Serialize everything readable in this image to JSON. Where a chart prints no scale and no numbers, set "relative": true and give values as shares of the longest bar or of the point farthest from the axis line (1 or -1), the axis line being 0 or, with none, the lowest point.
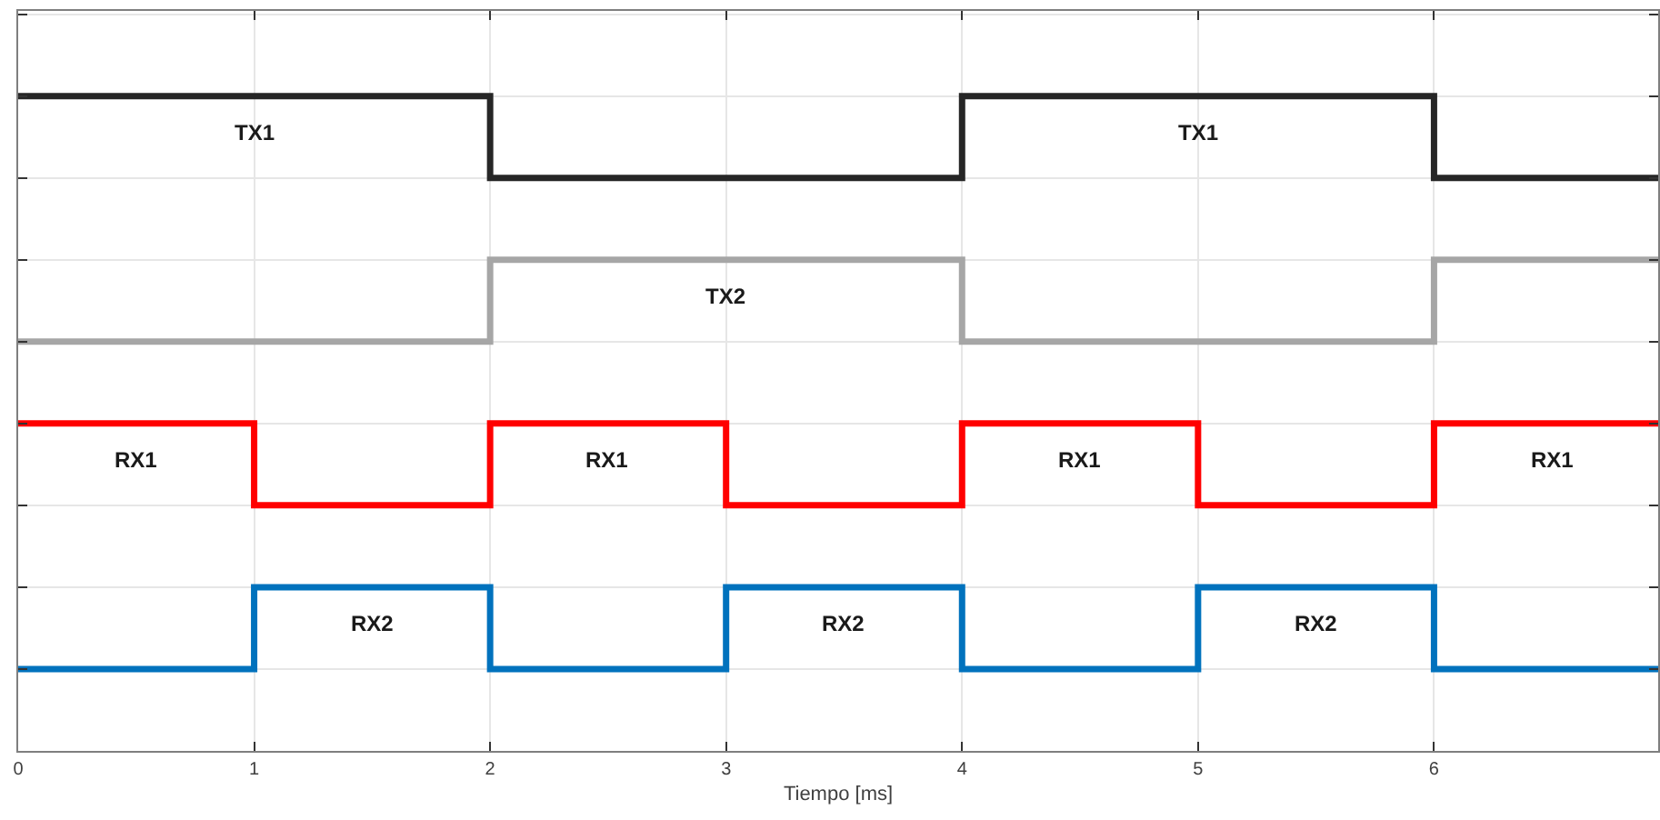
{
  "chart_data": {
    "type": "step",
    "relative": true,
    "xlabel": "Tiempo [ms]",
    "xlim": [
      0,
      6.95
    ],
    "xticks": [
      0,
      1,
      2,
      3,
      4,
      5,
      6
    ],
    "grid": true,
    "line_style": "solid",
    "marker": "none",
    "x": [
      0,
      0.5,
      1,
      1.5,
      2,
      2.5,
      3,
      3.5,
      4,
      4.5,
      5,
      5.5,
      6,
      6.5,
      6.95
    ],
    "series": [
      {
        "color": "#262626",
        "values": [
          1,
          1,
          1,
          1,
          0.875,
          0.875,
          0.875,
          0.875,
          1,
          1,
          1,
          1,
          0.875,
          0.875,
          0.875
        ]
      },
      {
        "color": "#a6a6a6",
        "values": [
          0.625,
          0.625,
          0.625,
          0.625,
          0.75,
          0.75,
          0.75,
          0.75,
          0.625,
          0.625,
          0.625,
          0.625,
          0.75,
          0.75,
          0.75
        ]
      },
      {
        "color": "#ff0000",
        "values": [
          0.5,
          0.5,
          0.375,
          0.375,
          0.5,
          0.5,
          0.375,
          0.375,
          0.5,
          0.5,
          0.375,
          0.375,
          0.5,
          0.5,
          0.5
        ]
      },
      {
        "color": "#0072bd",
        "values": [
          0.125,
          0.125,
          0.25,
          0.25,
          0.125,
          0.125,
          0.25,
          0.25,
          0.125,
          0.125,
          0.25,
          0.25,
          0.125,
          0.125,
          0.125
        ]
      }
    ],
    "annotations": [
      {
        "text": "TX1",
        "x": 1,
        "y": 1
      },
      {
        "text": "TX1",
        "x": 5,
        "y": 1
      },
      {
        "text": "TX2",
        "x": 3,
        "y": 0.75
      },
      {
        "text": "RX1",
        "x": 0.5,
        "y": 0.5
      },
      {
        "text": "RX1",
        "x": 2.5,
        "y": 0.5
      },
      {
        "text": "RX1",
        "x": 4.5,
        "y": 0.5
      },
      {
        "text": "RX1",
        "x": 6.5,
        "y": 0.5
      },
      {
        "text": "RX2",
        "x": 1.5,
        "y": 0.25
      },
      {
        "text": "RX2",
        "x": 3.5,
        "y": 0.25
      },
      {
        "text": "RX2",
        "x": 5.5,
        "y": 0.25
      }
    ]
  }
}
